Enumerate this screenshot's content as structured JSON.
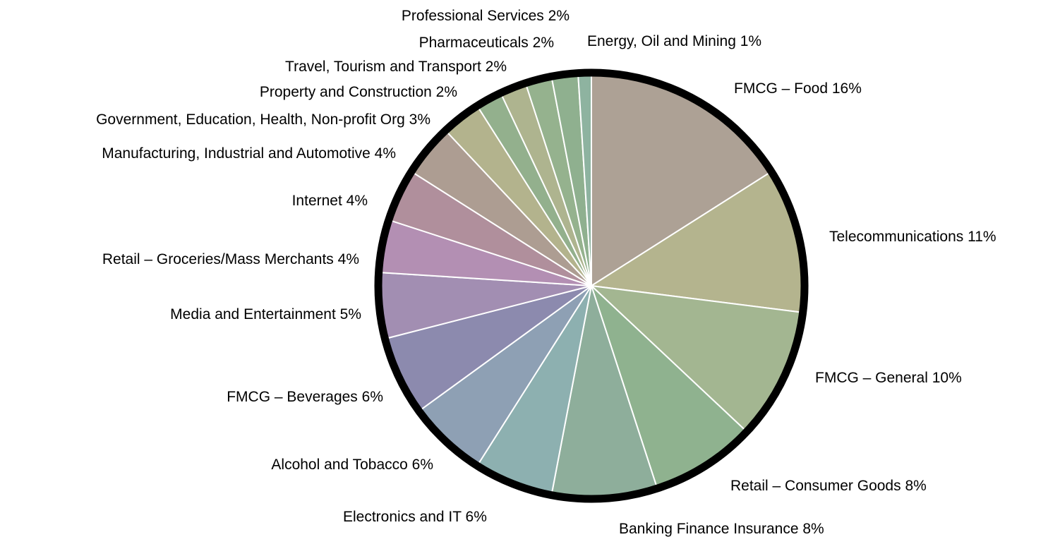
{
  "chart_data": {
    "type": "pie",
    "title": "",
    "start": "12 o'clock, clockwise",
    "slices": [
      {
        "label": "FMCG – Food 16%",
        "value": 16,
        "color": "#ada195"
      },
      {
        "label": "Telecommunications 11%",
        "value": 11,
        "color": "#b4b48e"
      },
      {
        "label": "FMCG – General 10%",
        "value": 10,
        "color": "#a3b691"
      },
      {
        "label": "Retail – Consumer Goods 8%",
        "value": 8,
        "color": "#8fb28f"
      },
      {
        "label": "Banking Finance Insurance 8%",
        "value": 8,
        "color": "#8eae9b"
      },
      {
        "label": "Electronics and IT 6%",
        "value": 6,
        "color": "#8db0b0"
      },
      {
        "label": "Alcohol and Tobacco 6%",
        "value": 6,
        "color": "#8ea0b4"
      },
      {
        "label": "FMCG – Beverages 6%",
        "value": 6,
        "color": "#8c8aae"
      },
      {
        "label": "Media and Entertainment 5%",
        "value": 5,
        "color": "#a28eb2"
      },
      {
        "label": "Retail – Groceries/Mass Merchants 4%",
        "value": 4,
        "color": "#b38fb3"
      },
      {
        "label": "Internet 4%",
        "value": 4,
        "color": "#b08f9c"
      },
      {
        "label": "Manufacturing, Industrial and Automotive 4%",
        "value": 4,
        "color": "#ad9d92"
      },
      {
        "label": "Government, Education, Health, Non-profit Org 3%",
        "value": 3,
        "color": "#b3b38d"
      },
      {
        "label": "Property and Construction 2%",
        "value": 2,
        "color": "#93b08d"
      },
      {
        "label": "Travel, Tourism and Transport 2%",
        "value": 2,
        "color": "#aeb48f"
      },
      {
        "label": "Pharmaceuticals 2%",
        "value": 2,
        "color": "#95b28e"
      },
      {
        "label": "Professional Services 2%",
        "value": 2,
        "color": "#8fb08f"
      },
      {
        "label": "Energy, Oil and Mining 1%",
        "value": 1,
        "color": "#8eb3a0"
      }
    ]
  }
}
